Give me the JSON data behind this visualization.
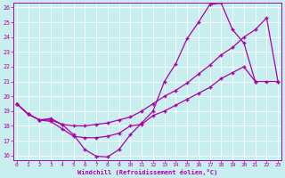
{
  "xlabel": "Windchill (Refroidissement éolien,°C)",
  "xlim": [
    -0.3,
    23.3
  ],
  "ylim": [
    15.7,
    26.3
  ],
  "xticks": [
    0,
    1,
    2,
    3,
    4,
    5,
    6,
    7,
    8,
    9,
    10,
    11,
    12,
    13,
    14,
    15,
    16,
    17,
    18,
    19,
    20,
    21,
    22,
    23
  ],
  "yticks": [
    16,
    17,
    18,
    19,
    20,
    21,
    22,
    23,
    24,
    25,
    26
  ],
  "bg_color": "#c8eef0",
  "line_color": "#aa00aa",
  "grid_color": "#ffffff",
  "curve_top": {
    "x": [
      0,
      1,
      2,
      3,
      4,
      5,
      6,
      7,
      8,
      9,
      10,
      11,
      12,
      13,
      14,
      15,
      16,
      17,
      18,
      19,
      20,
      21
    ],
    "y": [
      19.5,
      18.8,
      18.4,
      18.5,
      18.1,
      17.4,
      16.4,
      15.95,
      15.9,
      16.4,
      17.4,
      18.2,
      19.0,
      21.0,
      22.2,
      23.9,
      25.0,
      26.2,
      26.3,
      24.5,
      23.6,
      21.0
    ]
  },
  "curve_mid": {
    "x": [
      0,
      1,
      2,
      3,
      4,
      5,
      6,
      7,
      8,
      9,
      10,
      11,
      12,
      13,
      14,
      15,
      16,
      17,
      18,
      19,
      20,
      21,
      22,
      23
    ],
    "y": [
      19.5,
      18.8,
      18.4,
      18.4,
      18.1,
      18.0,
      18.0,
      18.1,
      18.2,
      18.4,
      18.6,
      19.0,
      19.5,
      20.0,
      20.4,
      20.9,
      21.5,
      22.1,
      22.8,
      23.3,
      24.0,
      24.5,
      25.3,
      21.0
    ]
  },
  "curve_bot": {
    "x": [
      0,
      1,
      2,
      3,
      4,
      5,
      6,
      7,
      8,
      9,
      10,
      11,
      12,
      13,
      14,
      15,
      16,
      17,
      18,
      19,
      20,
      21,
      22,
      23
    ],
    "y": [
      19.5,
      18.8,
      18.4,
      18.3,
      17.8,
      17.3,
      17.2,
      17.2,
      17.3,
      17.5,
      18.0,
      18.1,
      18.7,
      19.0,
      19.4,
      19.8,
      20.2,
      20.6,
      21.2,
      21.6,
      22.0,
      21.0,
      21.0,
      21.0
    ]
  }
}
